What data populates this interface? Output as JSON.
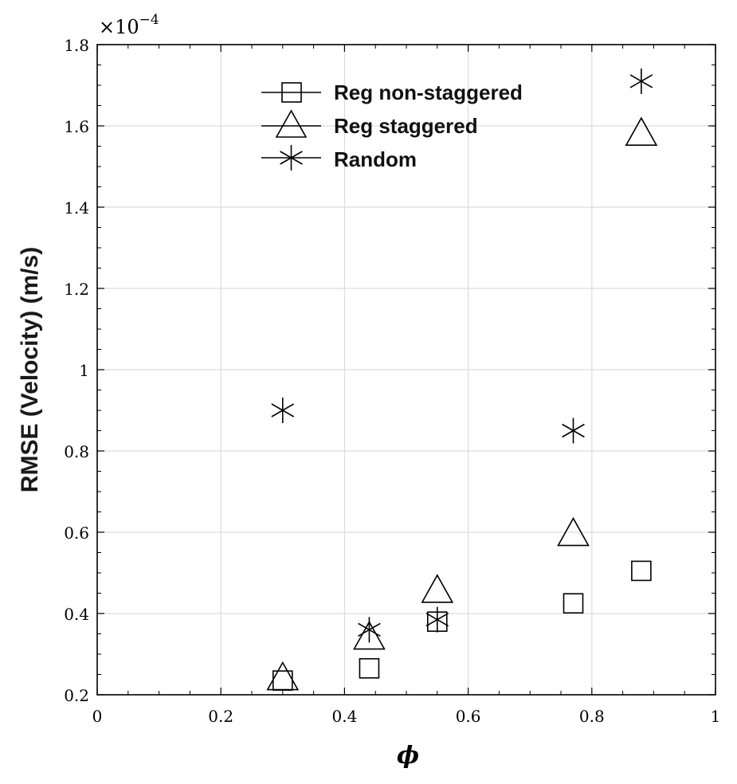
{
  "chart_data": {
    "type": "scatter",
    "title": "",
    "xlabel": "ϕ",
    "ylabel": "RMSE (Velocity) (m/s)",
    "xlim": [
      0,
      1
    ],
    "ylim": [
      0.2,
      1.8
    ],
    "y_exponent_base": "×10",
    "y_exponent_power": "−4",
    "grid": true,
    "legend_position": "top-center",
    "x_ticks": [
      0,
      0.2,
      0.4,
      0.6,
      0.8,
      1
    ],
    "x_tick_labels": [
      "0",
      "0.2",
      "0.4",
      "0.6",
      "0.8",
      "1"
    ],
    "y_ticks": [
      0.2,
      0.4,
      0.6,
      0.8,
      1,
      1.2,
      1.4,
      1.6,
      1.8
    ],
    "y_tick_labels": [
      "0.2",
      "0.4",
      "0.6",
      "0.8",
      "1",
      "1.2",
      "1.4",
      "1.6",
      "1.8"
    ],
    "series": [
      {
        "name": "Reg non-staggered",
        "marker": "square",
        "points": [
          [
            0.3,
            0.235
          ],
          [
            0.44,
            0.265
          ],
          [
            0.55,
            0.38
          ],
          [
            0.77,
            0.425
          ],
          [
            0.88,
            0.505
          ]
        ]
      },
      {
        "name": "Reg staggered",
        "marker": "triangle",
        "points": [
          [
            0.3,
            0.24
          ],
          [
            0.44,
            0.34
          ],
          [
            0.55,
            0.455
          ],
          [
            0.77,
            0.595
          ],
          [
            0.88,
            1.58
          ]
        ]
      },
      {
        "name": "Random",
        "marker": "asterisk",
        "points": [
          [
            0.3,
            0.9
          ],
          [
            0.44,
            0.36
          ],
          [
            0.55,
            0.385
          ],
          [
            0.77,
            0.85
          ],
          [
            0.88,
            1.71
          ]
        ]
      }
    ]
  }
}
